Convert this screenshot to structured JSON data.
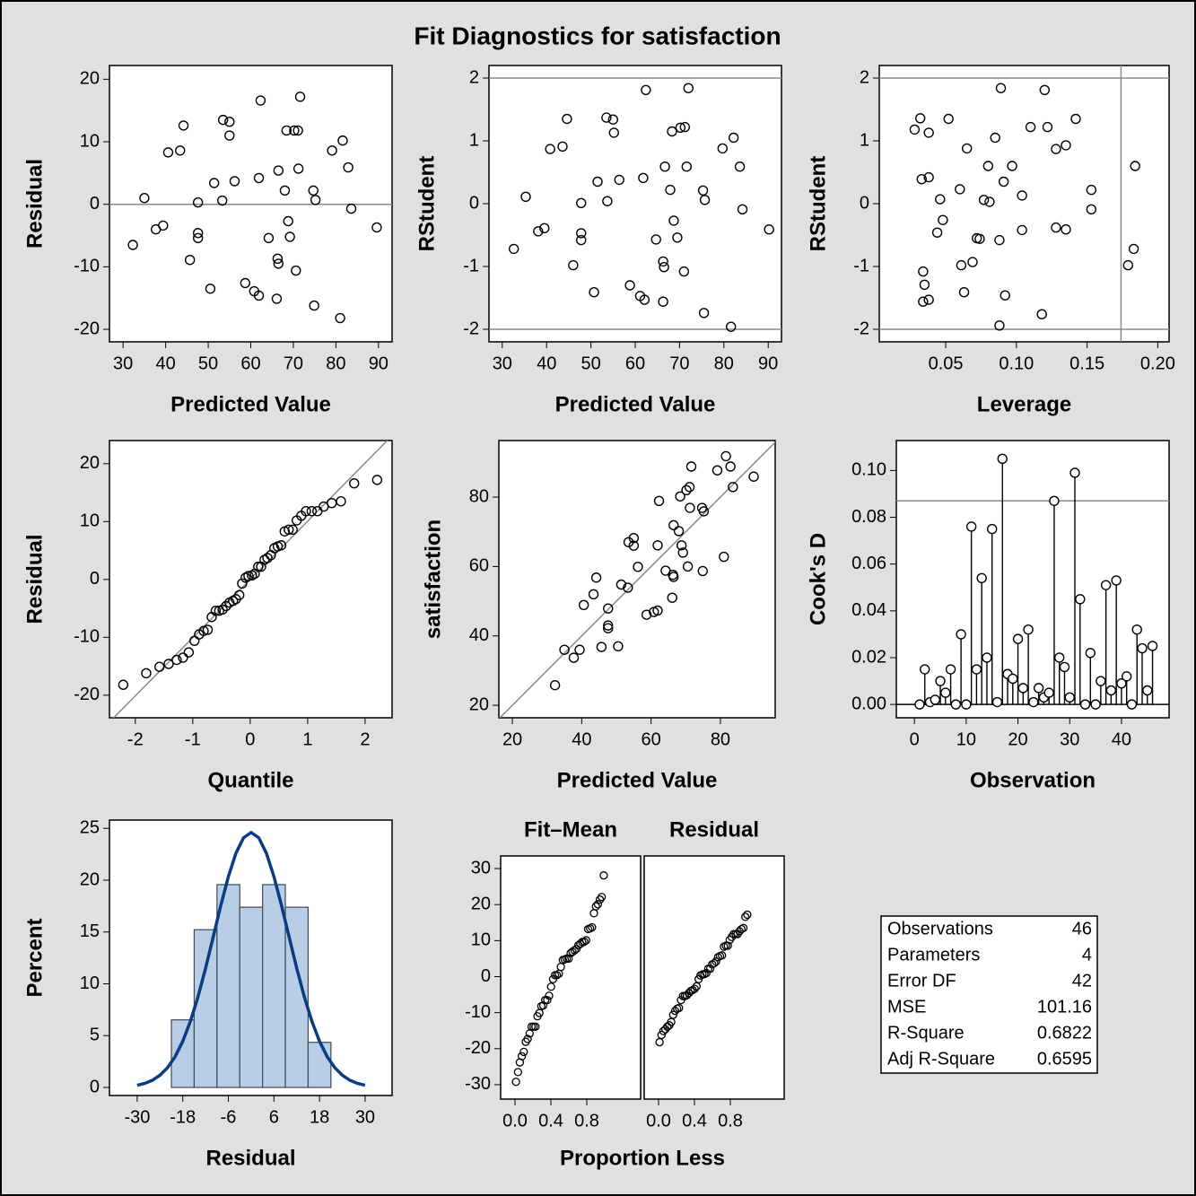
{
  "title": "Fit Diagnostics for satisfaction",
  "chart_data": [
    {
      "type": "scatter",
      "xlabel": "Predicted Value",
      "ylabel": "Residual",
      "color": "#000000",
      "xlim": [
        26.8,
        93.2
      ],
      "ylim": [
        -22,
        22.2
      ],
      "xticks": [
        30,
        40,
        50,
        60,
        70,
        80,
        90
      ],
      "yticks": [
        -20,
        -10,
        0,
        10,
        20
      ],
      "reference_lines": {
        "y": [
          0
        ]
      },
      "x": [
        32.3,
        35.0,
        37.7,
        39.4,
        40.6,
        43.4,
        44.2,
        45.7,
        47.6,
        47.6,
        47.6,
        50.5,
        51.4,
        53.5,
        53.3,
        55.0,
        55.0,
        56.2,
        58.7,
        60.8,
        61.9,
        61.9,
        62.3,
        64.2,
        66.1,
        66.3,
        66.5,
        66.5,
        68.0,
        68.4,
        68.8,
        69.2,
        70.2,
        71.1,
        70.6,
        71.2,
        71.6,
        74.7,
        75.2,
        74.9,
        79.1,
        81.0,
        81.6,
        82.9,
        83.6,
        89.6
      ],
      "y": [
        -6.5,
        1.0,
        -4.0,
        -3.4,
        8.3,
        8.6,
        12.6,
        -8.9,
        0.3,
        -4.6,
        -5.4,
        -13.5,
        3.4,
        13.5,
        0.6,
        13.2,
        11.0,
        3.7,
        -12.6,
        -13.9,
        -14.6,
        4.2,
        16.6,
        -5.4,
        -15.1,
        -8.7,
        -9.5,
        5.4,
        2.2,
        11.8,
        -2.7,
        -5.2,
        11.8,
        11.8,
        -10.6,
        5.7,
        17.2,
        2.2,
        0.7,
        -16.2,
        8.6,
        -18.2,
        10.2,
        5.9,
        -0.7,
        -3.7
      ]
    },
    {
      "type": "scatter",
      "xlabel": "Predicted Value",
      "ylabel": "RStudent",
      "color": "#000000",
      "xlim": [
        27,
        93
      ],
      "ylim": [
        -2.2,
        2.2
      ],
      "xticks": [
        30,
        40,
        50,
        60,
        70,
        80,
        90
      ],
      "yticks": [
        -2,
        -1,
        0,
        1,
        2
      ],
      "reference_lines": {
        "y": [
          -2,
          2
        ]
      },
      "x": [
        32.6,
        35.3,
        38.1,
        39.5,
        40.8,
        43.6,
        44.6,
        46.0,
        47.8,
        47.8,
        47.8,
        50.7,
        51.5,
        53.5,
        53.7,
        55.0,
        55.2,
        56.4,
        58.8,
        61.1,
        62.1,
        61.8,
        62.4,
        64.7,
        66.3,
        66.3,
        66.5,
        66.7,
        67.9,
        68.3,
        68.7,
        69.5,
        70.2,
        71.0,
        71.2,
        71.6,
        72.0,
        75.3,
        75.7,
        75.5,
        79.7,
        81.6,
        82.2,
        83.6,
        84.2,
        90.2
      ],
      "y": [
        -0.72,
        0.11,
        -0.44,
        -0.39,
        0.87,
        0.91,
        1.35,
        -0.98,
        0.01,
        -0.47,
        -0.58,
        -1.41,
        0.35,
        1.37,
        0.04,
        1.34,
        1.13,
        0.38,
        -1.3,
        -1.47,
        -1.53,
        0.41,
        1.81,
        -0.57,
        -1.56,
        -0.92,
        -1.01,
        0.59,
        0.22,
        1.15,
        -0.27,
        -0.54,
        1.21,
        -1.08,
        1.22,
        0.59,
        1.84,
        0.21,
        0.06,
        -1.74,
        0.88,
        -1.96,
        1.05,
        0.59,
        -0.09,
        -0.41
      ]
    },
    {
      "type": "scatter",
      "xlabel": "Leverage",
      "ylabel": "RStudent",
      "color": "#000000",
      "xlim": [
        0.003,
        0.208
      ],
      "ylim": [
        -2.2,
        2.2
      ],
      "xticks": [
        0.05,
        {
          "value": 0.1,
          "label": "0.10"
        },
        0.15,
        {
          "value": 0.2,
          "label": "0.20"
        }
      ],
      "yticks": [
        -2,
        -1,
        0,
        1,
        2
      ],
      "reference_lines": {
        "y": [
          -2,
          2
        ],
        "x": [
          0.174
        ]
      },
      "x": [
        0.028,
        0.032,
        0.033,
        0.034,
        0.035,
        0.034,
        0.038,
        0.038,
        0.038,
        0.044,
        0.046,
        0.048,
        0.052,
        0.06,
        0.061,
        0.063,
        0.065,
        0.069,
        0.072,
        0.074,
        0.077,
        0.08,
        0.081,
        0.085,
        0.088,
        0.089,
        0.088,
        0.091,
        0.092,
        0.097,
        0.104,
        0.104,
        0.11,
        0.118,
        0.12,
        0.122,
        0.128,
        0.128,
        0.135,
        0.135,
        0.142,
        0.153,
        0.153,
        0.179,
        0.183,
        0.184
      ],
      "y": [
        1.18,
        1.36,
        0.39,
        -1.08,
        -1.29,
        -1.56,
        -1.53,
        1.13,
        0.42,
        -0.46,
        0.07,
        -0.26,
        1.35,
        0.23,
        -0.98,
        -1.41,
        0.88,
        -0.93,
        -0.55,
        -0.56,
        0.06,
        0.6,
        0.03,
        1.05,
        -0.58,
        1.84,
        -1.94,
        0.35,
        -1.46,
        0.6,
        0.13,
        -0.42,
        1.22,
        -1.76,
        1.81,
        1.22,
        0.87,
        -0.38,
        0.93,
        -0.41,
        1.35,
        0.22,
        -0.09,
        -0.98,
        -0.72,
        0.6
      ]
    },
    {
      "type": "scatter",
      "xlabel": "Quantile",
      "ylabel": "Residual",
      "color": "#000000",
      "xlim": [
        -2.45,
        2.47
      ],
      "ylim": [
        -23.9,
        24
      ],
      "xticks": [
        -2,
        -1,
        0,
        1,
        2
      ],
      "yticks": [
        -20,
        -10,
        0,
        10,
        20
      ],
      "fit_line": {
        "slope": 10.06,
        "intercept": 0
      },
      "x": [
        -2.21,
        -1.81,
        -1.58,
        -1.42,
        -1.28,
        -1.17,
        -1.07,
        -0.97,
        -0.89,
        -0.81,
        -0.74,
        -0.67,
        -0.6,
        -0.54,
        -0.48,
        -0.42,
        -0.36,
        -0.3,
        -0.25,
        -0.19,
        -0.14,
        -0.08,
        -0.03,
        0.03,
        0.08,
        0.14,
        0.19,
        0.25,
        0.3,
        0.36,
        0.42,
        0.48,
        0.54,
        0.6,
        0.67,
        0.74,
        0.81,
        0.89,
        0.97,
        1.07,
        1.17,
        1.28,
        1.42,
        1.58,
        1.81,
        2.21
      ],
      "y": [
        -18.2,
        -16.2,
        -15.1,
        -14.6,
        -13.9,
        -13.5,
        -12.6,
        -10.6,
        -9.5,
        -8.9,
        -8.7,
        -6.5,
        -5.4,
        -5.4,
        -5.2,
        -4.6,
        -4.0,
        -3.7,
        -3.4,
        -2.7,
        -0.7,
        0.3,
        0.6,
        0.7,
        1.0,
        2.2,
        2.2,
        3.4,
        3.7,
        4.2,
        5.4,
        5.7,
        5.9,
        8.3,
        8.6,
        8.6,
        10.2,
        11.0,
        11.8,
        11.8,
        11.8,
        12.6,
        13.2,
        13.5,
        16.6,
        17.2
      ]
    },
    {
      "type": "scatter",
      "xlabel": "Predicted Value",
      "ylabel": "satisfaction",
      "color": "#000000",
      "xlim": [
        16.1,
        95.8
      ],
      "ylim": [
        16.4,
        96.3
      ],
      "xticks": [
        20,
        40,
        60,
        80
      ],
      "yticks": [
        20,
        40,
        60,
        80
      ],
      "fit_line": {
        "slope": 1,
        "intercept": 0
      },
      "x": [
        32.3,
        35.0,
        37.7,
        39.4,
        40.6,
        43.4,
        44.2,
        45.7,
        47.6,
        47.6,
        47.6,
        50.5,
        51.4,
        53.5,
        53.3,
        55.0,
        55.0,
        56.2,
        58.7,
        60.8,
        61.9,
        61.9,
        62.3,
        64.2,
        66.1,
        66.3,
        66.5,
        66.5,
        68.0,
        68.4,
        68.8,
        69.2,
        70.2,
        71.1,
        70.6,
        71.2,
        71.6,
        74.7,
        75.2,
        74.9,
        79.1,
        81.0,
        81.6,
        82.9,
        83.6,
        89.6
      ],
      "y": [
        25.8,
        36.0,
        33.7,
        36.0,
        48.9,
        52.0,
        56.8,
        36.8,
        47.9,
        43.0,
        42.2,
        37.0,
        54.8,
        67.0,
        53.9,
        68.2,
        66.0,
        59.9,
        46.1,
        46.9,
        47.3,
        66.1,
        78.9,
        58.8,
        51.0,
        57.6,
        57.0,
        71.9,
        70.2,
        80.2,
        66.1,
        64.0,
        82.0,
        82.9,
        60.0,
        76.9,
        88.8,
        76.9,
        75.9,
        58.7,
        87.7,
        62.8,
        91.8,
        88.8,
        82.9,
        85.9
      ]
    },
    {
      "type": "needle",
      "xlabel": "Observation",
      "ylabel": "Cook's D",
      "color": "#000000",
      "xlim": [
        -3.5,
        49.2
      ],
      "ylim": [
        -0.0057,
        0.1128
      ],
      "xticks": [
        0,
        10,
        20,
        30,
        40
      ],
      "yticks": [
        {
          "value": 0,
          "label": "0.00"
        },
        0.02,
        0.04,
        0.06,
        0.08,
        {
          "value": 0.1,
          "label": "0.10"
        }
      ],
      "reference_lines": {
        "y": [
          0.087
        ]
      },
      "x": [
        1,
        2,
        3,
        4,
        5,
        6,
        7,
        8,
        9,
        10,
        11,
        12,
        13,
        14,
        15,
        16,
        17,
        18,
        19,
        20,
        21,
        22,
        23,
        24,
        25,
        26,
        27,
        28,
        29,
        30,
        31,
        32,
        33,
        34,
        35,
        36,
        37,
        38,
        39,
        40,
        41,
        42,
        43,
        44,
        45,
        46
      ],
      "y": [
        0.0,
        0.015,
        0.001,
        0.002,
        0.01,
        0.005,
        0.015,
        0.0,
        0.03,
        0.0,
        0.076,
        0.015,
        0.054,
        0.02,
        0.075,
        0.001,
        0.105,
        0.013,
        0.011,
        0.028,
        0.007,
        0.032,
        0.001,
        0.007,
        0.003,
        0.005,
        0.087,
        0.02,
        0.016,
        0.003,
        0.099,
        0.045,
        0.0,
        0.022,
        0.0,
        0.01,
        0.051,
        0.006,
        0.053,
        0.009,
        0.012,
        0.0,
        0.032,
        0.024,
        0.006,
        0.025
      ]
    },
    {
      "type": "histogram",
      "xlabel": "Residual",
      "ylabel": "Percent",
      "color": "#b8cde6",
      "edge_color": "#404858",
      "xlim": [
        -37.3,
        37.1
      ],
      "ylim": [
        -0.78,
        25.8
      ],
      "xticks": [
        -30,
        -18,
        -6,
        6,
        18,
        30
      ],
      "yticks": [
        0,
        5,
        10,
        15,
        20,
        25
      ],
      "bins": [
        -21,
        -15,
        -9,
        -3,
        3,
        9,
        15,
        21
      ],
      "values": [
        6.52,
        15.22,
        19.57,
        17.39,
        19.57,
        17.39,
        4.35
      ],
      "curve": {
        "color": "#0b3b82",
        "x": [
          -30,
          -28,
          -26,
          -24,
          -22,
          -20,
          -18,
          -16,
          -14,
          -12,
          -10,
          -8,
          -6,
          -4,
          -2,
          0,
          2,
          4,
          6,
          8,
          10,
          12,
          14,
          16,
          18,
          20,
          22,
          24,
          26,
          28,
          30
        ],
        "y": [
          0.21,
          0.39,
          0.69,
          1.18,
          1.91,
          2.98,
          4.45,
          6.37,
          8.74,
          11.5,
          14.51,
          17.55,
          20.34,
          22.61,
          24.09,
          24.6,
          24.09,
          22.61,
          20.34,
          17.55,
          14.51,
          11.5,
          8.74,
          6.37,
          4.45,
          2.98,
          1.91,
          1.18,
          0.69,
          0.39,
          0.21
        ]
      }
    },
    {
      "type": "spread",
      "xlabel": "Proportion Less",
      "color": "#000000",
      "xlim": [
        -0.16,
        1.4
      ],
      "ylim": [
        -34,
        33.5
      ],
      "xticks": [
        {
          "value": 0,
          "label": "0.0"
        },
        0.4,
        0.8
      ],
      "yticks": [
        -30,
        -20,
        -10,
        0,
        10,
        20,
        30
      ],
      "x": [
        0.011,
        0.033,
        0.054,
        0.076,
        0.098,
        0.12,
        0.141,
        0.163,
        0.185,
        0.207,
        0.228,
        0.25,
        0.272,
        0.293,
        0.315,
        0.337,
        0.359,
        0.38,
        0.402,
        0.424,
        0.446,
        0.467,
        0.489,
        0.511,
        0.533,
        0.554,
        0.576,
        0.598,
        0.62,
        0.641,
        0.663,
        0.685,
        0.707,
        0.728,
        0.75,
        0.772,
        0.793,
        0.815,
        0.837,
        0.859,
        0.88,
        0.902,
        0.924,
        0.946,
        0.967,
        0.989
      ],
      "panels": [
        {
          "title": "Fit–Mean",
          "values": [
            -29.2,
            -26.5,
            -23.8,
            -22.1,
            -20.9,
            -18.1,
            -17.3,
            -15.8,
            -13.9,
            -13.9,
            -13.9,
            -11.0,
            -10.1,
            -8.2,
            -8.0,
            -6.5,
            -6.5,
            -5.3,
            -2.8,
            -0.7,
            0.4,
            0.4,
            0.8,
            2.7,
            4.6,
            4.8,
            5.0,
            5.0,
            6.5,
            6.9,
            7.3,
            7.7,
            8.7,
            9.1,
            9.6,
            9.7,
            10.1,
            13.2,
            13.4,
            13.7,
            17.6,
            19.5,
            20.1,
            21.4,
            22.1,
            28.1
          ]
        },
        {
          "title": "Residual",
          "values": [
            -18.2,
            -16.2,
            -15.1,
            -14.6,
            -13.9,
            -13.5,
            -12.6,
            -10.6,
            -9.5,
            -8.9,
            -8.7,
            -6.5,
            -5.4,
            -5.4,
            -5.2,
            -4.6,
            -4.0,
            -3.7,
            -3.4,
            -2.7,
            -0.7,
            0.3,
            0.6,
            0.7,
            1.0,
            2.2,
            2.2,
            3.4,
            3.7,
            4.2,
            5.4,
            5.7,
            5.9,
            8.3,
            8.6,
            8.6,
            10.2,
            11.0,
            11.8,
            11.8,
            11.8,
            12.6,
            13.2,
            13.5,
            16.6,
            17.2
          ]
        }
      ]
    }
  ],
  "fit_statistics": {
    "rows": [
      [
        "Observations",
        46
      ],
      [
        "Parameters",
        4
      ],
      [
        "Error DF",
        42
      ],
      [
        "MSE",
        101.16
      ],
      [
        "R-Square",
        0.6822
      ],
      [
        "Adj R-Square",
        0.6595
      ]
    ]
  }
}
